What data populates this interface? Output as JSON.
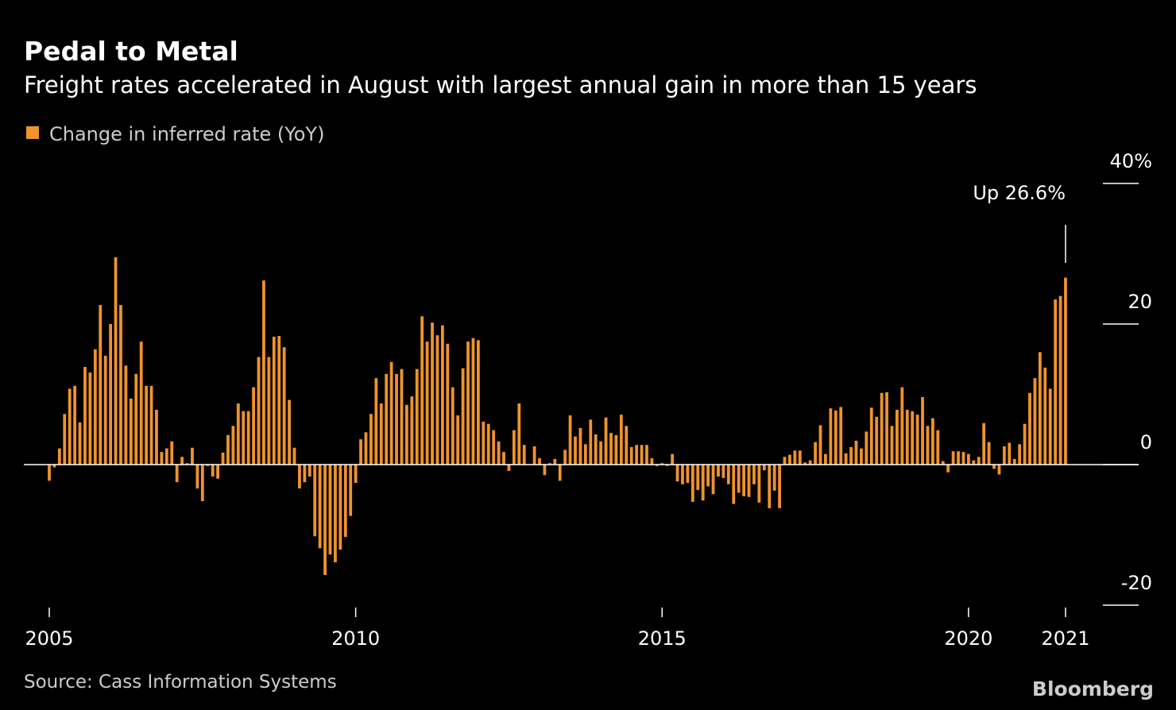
{
  "chart_data": {
    "type": "bar",
    "title": "Pedal to Metal",
    "subtitle": "Freight rates accelerated in August with largest annual gain in more than 15 years",
    "annotation": "Up 26.6%",
    "source": "Source: Cass Information Systems",
    "credit": "Bloomberg",
    "categories": [
      "2005",
      null,
      null,
      null,
      null,
      null,
      null,
      null,
      null,
      null,
      null,
      null,
      null,
      null,
      null,
      null,
      null,
      null,
      null,
      null,
      null,
      null,
      null,
      null,
      null,
      null,
      null,
      null,
      null,
      null,
      null,
      null,
      null,
      null,
      null,
      null,
      null,
      null,
      null,
      null,
      null,
      null,
      null,
      null,
      null,
      null,
      null,
      null,
      null,
      null,
      null,
      null,
      null,
      null,
      null,
      null,
      null,
      null,
      null,
      null,
      "2010",
      null,
      null,
      null,
      null,
      null,
      null,
      null,
      null,
      null,
      null,
      null,
      null,
      null,
      null,
      null,
      null,
      null,
      null,
      null,
      null,
      null,
      null,
      null,
      null,
      null,
      null,
      null,
      null,
      null,
      null,
      null,
      null,
      null,
      null,
      null,
      null,
      null,
      null,
      null,
      null,
      null,
      null,
      null,
      null,
      null,
      null,
      null,
      null,
      null,
      null,
      null,
      null,
      null,
      null,
      null,
      null,
      null,
      null,
      null,
      "2015",
      null,
      null,
      null,
      null,
      null,
      null,
      null,
      null,
      null,
      null,
      null,
      null,
      null,
      null,
      null,
      null,
      null,
      null,
      null,
      null,
      null,
      null,
      null,
      null,
      null,
      null,
      null,
      null,
      null,
      null,
      null,
      null,
      null,
      null,
      null,
      null,
      null,
      null,
      null,
      null,
      null,
      null,
      null,
      null,
      null,
      null,
      null,
      null,
      null,
      null,
      null,
      null,
      null,
      null,
      null,
      null,
      null,
      null,
      null,
      "2020",
      null,
      null,
      null,
      null,
      null,
      null,
      null,
      null,
      null,
      null,
      null,
      null,
      null,
      null,
      null,
      null,
      null,
      null,
      "2021"
    ],
    "series": [
      {
        "name": "Change in inferred rate (YoY)",
        "color": "#f0932b",
        "values": [
          -2.3,
          -0.4,
          2.3,
          7.2,
          10.8,
          11.2,
          6.0,
          13.9,
          13.1,
          16.4,
          22.7,
          15.5,
          20.0,
          29.5,
          22.7,
          14.1,
          9.4,
          12.9,
          17.5,
          11.2,
          11.2,
          7.8,
          1.8,
          2.3,
          3.3,
          -2.5,
          1.1,
          0.2,
          2.4,
          -3.4,
          -5.2,
          -0.2,
          -1.7,
          -2.0,
          1.7,
          4.2,
          5.5,
          8.7,
          7.6,
          7.6,
          11.0,
          15.3,
          26.2,
          15.3,
          18.2,
          18.3,
          16.7,
          9.2,
          2.4,
          -3.4,
          -2.5,
          -1.7,
          -10.2,
          -11.9,
          -15.7,
          -12.8,
          -13.9,
          -12.1,
          -10.3,
          -7.3,
          -2.6,
          3.6,
          4.6,
          7.2,
          12.3,
          8.7,
          12.9,
          14.6,
          12.9,
          13.6,
          8.5,
          9.7,
          13.6,
          21.1,
          17.5,
          20.2,
          18.4,
          19.8,
          17.2,
          11.0,
          7.0,
          13.7,
          17.5,
          18.0,
          17.7,
          6.1,
          5.8,
          4.9,
          3.3,
          1.8,
          -0.9,
          4.9,
          8.7,
          2.8,
          0,
          2.6,
          0.9,
          -1.5,
          0.2,
          0.8,
          -2.3,
          2.1,
          7.0,
          4.0,
          5.2,
          2.9,
          6.4,
          4.3,
          3.3,
          6.7,
          4.5,
          4.2,
          7.1,
          5.5,
          2.5,
          2.8,
          2.8,
          2.8,
          0.9,
          -0.2,
          0.2,
          -0.2,
          1.5,
          -2.4,
          -2.8,
          -2.6,
          -5.3,
          -3.6,
          -5.1,
          -3.1,
          -4.2,
          -1.7,
          -1.9,
          -2.8,
          -5.6,
          -4.0,
          -4.5,
          -4.6,
          -2.8,
          -5.4,
          -0.8,
          -6.2,
          -3.7,
          -6.2,
          1.1,
          1.4,
          2.0,
          2.0,
          0.3,
          0.6,
          3.2,
          5.6,
          1.5,
          8.0,
          7.7,
          8.2,
          1.6,
          2.5,
          3.4,
          2.3,
          4.7,
          8.1,
          6.8,
          10.2,
          10.3,
          5.5,
          7.8,
          11.0,
          7.8,
          7.6,
          7.1,
          9.6,
          5.5,
          6.6,
          4.9,
          0.5,
          -1.1,
          1.9,
          1.9,
          1.8,
          1.5,
          0.6,
          1.1,
          5.9,
          3.2,
          -0.6,
          -1.4,
          2.6,
          3.1,
          0.8,
          2.9,
          5.8,
          10.2,
          12.3,
          16.0,
          13.8,
          10.8,
          23.5,
          24.0,
          26.6
        ]
      }
    ],
    "ylim": [
      -20,
      40
    ],
    "yticks": [
      {
        "value": 40,
        "label": "40%"
      },
      20,
      0,
      -20
    ]
  }
}
